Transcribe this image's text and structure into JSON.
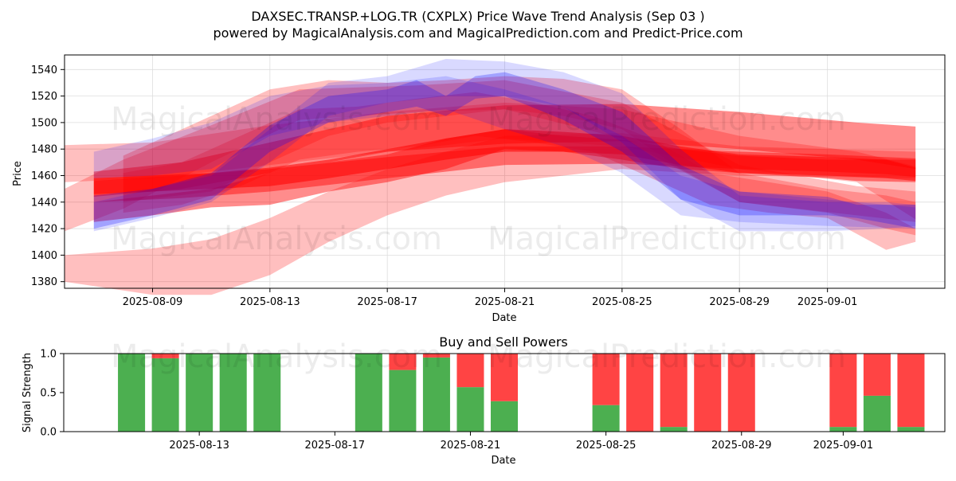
{
  "title_line1": "DAXSEC.TRANSP.+LOG.TR (CXPLX) Price Wave Trend Analysis (Sep 03 )",
  "title_line2": "powered by MagicalAnalysis.com and MagicalPrediction.com and Predict-Price.com",
  "watermarks": [
    "MagicalAnalysis.com",
    "MagicalPrediction.com"
  ],
  "colors": {
    "red_band": "#ff0000",
    "blue_band": "#0000ff",
    "buy": "#4caf50",
    "sell": "#ff4444"
  },
  "chart_data": [
    {
      "type": "area",
      "title": "",
      "xlabel": "Date",
      "ylabel": "Price",
      "x_ticks": [
        "2025-08-09",
        "2025-08-13",
        "2025-08-17",
        "2025-08-21",
        "2025-08-25",
        "2025-08-29",
        "2025-09-01"
      ],
      "y_ticks": [
        1380,
        1400,
        1420,
        1440,
        1460,
        1480,
        1500,
        1520,
        1540
      ],
      "xlim": [
        "2025-08-06",
        "2025-09-05"
      ],
      "ylim": [
        1375,
        1551
      ],
      "grid": true,
      "series": [
        {
          "color": "red",
          "opacity": 0.25,
          "points": [
            [
              "2025-08-06",
              1450,
              1418
            ],
            [
              "2025-08-08",
              1472,
              1435
            ],
            [
              "2025-08-11",
              1498,
              1470
            ],
            [
              "2025-08-14",
              1525,
              1502
            ],
            [
              "2025-08-18",
              1528,
              1508
            ],
            [
              "2025-08-21",
              1532,
              1510
            ],
            [
              "2025-08-25",
              1515,
              1488
            ],
            [
              "2025-08-29",
              1468,
              1440
            ],
            [
              "2025-09-02",
              1452,
              1430
            ],
            [
              "2025-09-04",
              1448,
              1425
            ]
          ]
        },
        {
          "color": "red",
          "opacity": 0.25,
          "points": [
            [
              "2025-08-06",
              1483,
              1455
            ],
            [
              "2025-08-09",
              1485,
              1458
            ],
            [
              "2025-08-13",
              1498,
              1468
            ],
            [
              "2025-08-17",
              1508,
              1478
            ],
            [
              "2025-08-21",
              1515,
              1488
            ],
            [
              "2025-08-25",
              1510,
              1482
            ],
            [
              "2025-08-29",
              1490,
              1465
            ],
            [
              "2025-09-02",
              1478,
              1455
            ],
            [
              "2025-09-04",
              1467,
              1427
            ]
          ]
        },
        {
          "color": "red",
          "opacity": 0.25,
          "points": [
            [
              "2025-08-06",
              1400,
              1380
            ],
            [
              "2025-08-09",
              1405,
              1370
            ],
            [
              "2025-08-11",
              1412,
              1370
            ],
            [
              "2025-08-13",
              1428,
              1385
            ],
            [
              "2025-08-15",
              1448,
              1410
            ],
            [
              "2025-08-17",
              1465,
              1430
            ],
            [
              "2025-08-19",
              1478,
              1445
            ],
            [
              "2025-08-21",
              1490,
              1455
            ],
            [
              "2025-08-25",
              1492,
              1465
            ],
            [
              "2025-08-29",
              1482,
              1460
            ],
            [
              "2025-09-04",
              1478,
              1458
            ]
          ]
        },
        {
          "color": "red",
          "opacity": 0.25,
          "points": [
            [
              "2025-08-08",
              1475,
              1440
            ],
            [
              "2025-08-11",
              1505,
              1448
            ],
            [
              "2025-08-13",
              1525,
              1470
            ],
            [
              "2025-08-15",
              1532,
              1490
            ],
            [
              "2025-08-17",
              1530,
              1500
            ],
            [
              "2025-08-19",
              1532,
              1505
            ],
            [
              "2025-08-21",
              1535,
              1510
            ],
            [
              "2025-08-23",
              1533,
              1505
            ],
            [
              "2025-08-25",
              1525,
              1495
            ],
            [
              "2025-08-27",
              1495,
              1465
            ],
            [
              "2025-08-29",
              1462,
              1440
            ],
            [
              "2025-09-01",
              1450,
              1432
            ],
            [
              "2025-09-03",
              1445,
              1420
            ],
            [
              "2025-09-04",
              1440,
              1415
            ]
          ]
        },
        {
          "color": "red",
          "opacity": 0.25,
          "points": [
            [
              "2025-08-08",
              1462,
              1432
            ],
            [
              "2025-08-10",
              1470,
              1438
            ],
            [
              "2025-08-12",
              1490,
              1452
            ],
            [
              "2025-08-14",
              1510,
              1472
            ],
            [
              "2025-08-16",
              1512,
              1478
            ],
            [
              "2025-08-18",
              1518,
              1482
            ],
            [
              "2025-08-20",
              1523,
              1490
            ],
            [
              "2025-08-22",
              1515,
              1485
            ],
            [
              "2025-08-24",
              1505,
              1478
            ],
            [
              "2025-08-26",
              1488,
              1458
            ],
            [
              "2025-08-28",
              1462,
              1438
            ],
            [
              "2025-08-30",
              1455,
              1432
            ],
            [
              "2025-09-01",
              1448,
              1428
            ],
            [
              "2025-09-03",
              1432,
              1404
            ],
            [
              "2025-09-04",
              1420,
              1410
            ]
          ]
        },
        {
          "color": "red",
          "opacity": 0.45,
          "points": [
            [
              "2025-08-07",
              1463,
              1444
            ],
            [
              "2025-08-10",
              1470,
              1450
            ],
            [
              "2025-08-13",
              1485,
              1462
            ],
            [
              "2025-08-17",
              1505,
              1478
            ],
            [
              "2025-08-21",
              1513,
              1484
            ],
            [
              "2025-08-25",
              1514,
              1486
            ],
            [
              "2025-08-29",
              1508,
              1480
            ],
            [
              "2025-09-02",
              1500,
              1472
            ],
            [
              "2025-09-04",
              1497,
              1465
            ]
          ]
        },
        {
          "color": "red",
          "opacity": 0.45,
          "points": [
            [
              "2025-08-07",
              1456,
              1440
            ],
            [
              "2025-08-10",
              1460,
              1443
            ],
            [
              "2025-08-13",
              1465,
              1448
            ],
            [
              "2025-08-17",
              1474,
              1458
            ],
            [
              "2025-08-21",
              1482,
              1468
            ],
            [
              "2025-08-25",
              1482,
              1469
            ],
            [
              "2025-08-29",
              1478,
              1465
            ],
            [
              "2025-09-01",
              1476,
              1463
            ],
            [
              "2025-09-03",
              1474,
              1461
            ],
            [
              "2025-09-04",
              1473,
              1459
            ]
          ]
        },
        {
          "color": "red",
          "opacity": 0.45,
          "points": [
            [
              "2025-08-07",
              1440,
              1425
            ],
            [
              "2025-08-09",
              1445,
              1430
            ],
            [
              "2025-08-11",
              1450,
              1436
            ],
            [
              "2025-08-13",
              1462,
              1438
            ],
            [
              "2025-08-15",
              1470,
              1448
            ],
            [
              "2025-08-17",
              1476,
              1455
            ],
            [
              "2025-08-19",
              1488,
              1465
            ],
            [
              "2025-08-21",
              1495,
              1480
            ],
            [
              "2025-08-23",
              1490,
              1478
            ],
            [
              "2025-08-25",
              1487,
              1472
            ],
            [
              "2025-08-27",
              1480,
              1465
            ],
            [
              "2025-08-29",
              1475,
              1462
            ],
            [
              "2025-09-01",
              1472,
              1458
            ],
            [
              "2025-09-02",
              1472,
              1456
            ],
            [
              "2025-09-04",
              1472,
              1455
            ]
          ]
        },
        {
          "color": "red",
          "opacity": 0.55,
          "points": [
            [
              "2025-08-07",
              1458,
              1446
            ],
            [
              "2025-08-09",
              1460,
              1448
            ],
            [
              "2025-08-11",
              1462,
              1450
            ],
            [
              "2025-08-13",
              1466,
              1452
            ],
            [
              "2025-08-15",
              1472,
              1458
            ],
            [
              "2025-08-17",
              1480,
              1465
            ],
            [
              "2025-08-19",
              1488,
              1472
            ],
            [
              "2025-08-21",
              1495,
              1478
            ],
            [
              "2025-08-23",
              1493,
              1478
            ],
            [
              "2025-08-25",
              1490,
              1476
            ],
            [
              "2025-08-27",
              1482,
              1468
            ],
            [
              "2025-08-29",
              1476,
              1462
            ],
            [
              "2025-09-01",
              1474,
              1460
            ],
            [
              "2025-09-03",
              1472,
              1458
            ],
            [
              "2025-09-04",
              1466,
              1456
            ]
          ]
        },
        {
          "color": "blue",
          "opacity": 0.15,
          "points": [
            [
              "2025-08-07",
              1440,
              1418
            ],
            [
              "2025-08-09",
              1450,
              1428
            ],
            [
              "2025-08-11",
              1460,
              1440
            ],
            [
              "2025-08-13",
              1495,
              1470
            ],
            [
              "2025-08-15",
              1530,
              1505
            ],
            [
              "2025-08-17",
              1535,
              1515
            ],
            [
              "2025-08-19",
              1548,
              1520
            ],
            [
              "2025-08-21",
              1546,
              1520
            ],
            [
              "2025-08-23",
              1538,
              1512
            ],
            [
              "2025-08-25",
              1522,
              1485
            ],
            [
              "2025-08-27",
              1480,
              1442
            ],
            [
              "2025-08-29",
              1445,
              1418
            ],
            [
              "2025-09-01",
              1440,
              1418
            ],
            [
              "2025-09-03",
              1440,
              1420
            ],
            [
              "2025-09-04",
              1438,
              1422
            ]
          ]
        },
        {
          "color": "blue",
          "opacity": 0.15,
          "points": [
            [
              "2025-08-07",
              1478,
              1458
            ],
            [
              "2025-08-09",
              1488,
              1460
            ],
            [
              "2025-08-11",
              1500,
              1465
            ],
            [
              "2025-08-13",
              1520,
              1490
            ],
            [
              "2025-08-15",
              1528,
              1500
            ],
            [
              "2025-08-17",
              1530,
              1505
            ],
            [
              "2025-08-19",
              1535,
              1510
            ],
            [
              "2025-08-21",
              1525,
              1495
            ],
            [
              "2025-08-23",
              1512,
              1482
            ],
            [
              "2025-08-25",
              1490,
              1462
            ],
            [
              "2025-08-27",
              1460,
              1430
            ],
            [
              "2025-08-29",
              1448,
              1425
            ],
            [
              "2025-09-01",
              1442,
              1422
            ],
            [
              "2025-09-04",
              1436,
              1420
            ]
          ]
        },
        {
          "color": "blue",
          "opacity": 0.25,
          "points": [
            [
              "2025-08-07",
              1445,
              1420
            ],
            [
              "2025-08-09",
              1450,
              1430
            ],
            [
              "2025-08-11",
              1462,
              1442
            ],
            [
              "2025-08-13",
              1498,
              1478
            ],
            [
              "2025-08-15",
              1520,
              1500
            ],
            [
              "2025-08-17",
              1525,
              1508
            ],
            [
              "2025-08-18",
              1532,
              1512
            ],
            [
              "2025-08-19",
              1520,
              1505
            ],
            [
              "2025-08-20",
              1535,
              1518
            ],
            [
              "2025-08-21",
              1538,
              1520
            ],
            [
              "2025-08-23",
              1525,
              1502
            ],
            [
              "2025-08-25",
              1508,
              1478
            ],
            [
              "2025-08-27",
              1468,
              1442
            ],
            [
              "2025-08-29",
              1448,
              1430
            ],
            [
              "2025-09-01",
              1444,
              1430
            ],
            [
              "2025-09-02",
              1438,
              1428
            ],
            [
              "2025-09-04",
              1438,
              1420
            ]
          ]
        }
      ]
    },
    {
      "type": "bar",
      "title": "Buy and Sell Powers",
      "xlabel": "Date",
      "ylabel": "Signal Strength",
      "x_ticks": [
        "2025-08-13",
        "2025-08-17",
        "2025-08-21",
        "2025-08-25",
        "2025-08-29",
        "2025-09-01"
      ],
      "y_ticks": [
        0.0,
        0.5,
        1.0
      ],
      "xlim": [
        "2025-08-09",
        "2025-09-04"
      ],
      "ylim": [
        0,
        1
      ],
      "grid": false,
      "categories": [
        "2025-08-11",
        "2025-08-12",
        "2025-08-13",
        "2025-08-14",
        "2025-08-15",
        "2025-08-18",
        "2025-08-19",
        "2025-08-20",
        "2025-08-21",
        "2025-08-22",
        "2025-08-25",
        "2025-08-26",
        "2025-08-27",
        "2025-08-28",
        "2025-08-29",
        "2025-09-01",
        "2025-09-02",
        "2025-09-03"
      ],
      "series": [
        {
          "name": "Buy",
          "values": [
            1.0,
            0.94,
            1.0,
            1.0,
            1.0,
            1.0,
            0.79,
            0.95,
            0.57,
            0.39,
            0.34,
            0.0,
            0.06,
            0.0,
            0.0,
            0.06,
            0.46,
            0.06
          ]
        },
        {
          "name": "Sell",
          "values": [
            0.0,
            0.06,
            0.0,
            0.0,
            0.0,
            0.0,
            0.21,
            0.05,
            0.43,
            0.61,
            0.66,
            1.0,
            0.94,
            1.0,
            1.0,
            0.94,
            0.54,
            0.94
          ]
        }
      ]
    }
  ]
}
